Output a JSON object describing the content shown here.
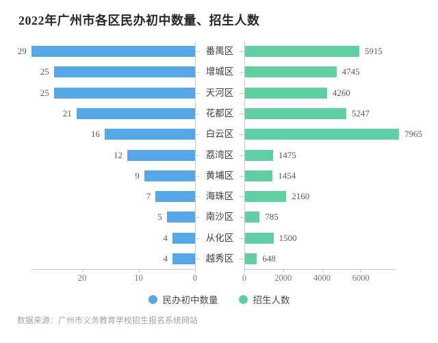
{
  "page": {
    "title": "2022年广州市各区民办初中数量、招生人数",
    "source_note": "数据来源：广州市义务教育学校招生报名系统网站"
  },
  "colors": {
    "schools_blue": "#56a7e8",
    "enrollment_green": "#5fd0a2",
    "axis_line": "#c9c9c9",
    "tick_label": "#737373",
    "value_label": "#595959",
    "category_label": "#3d3d3d",
    "title": "#262626",
    "source": "#a3a3a3",
    "background": "#ffffff"
  },
  "legend": {
    "items": [
      {
        "label": "民办初中数量",
        "color": "#56a7e8"
      },
      {
        "label": "招生人数",
        "color": "#5fd0a2"
      }
    ]
  },
  "chart_data": {
    "type": "bar",
    "variant": "diverging-horizontal-tornado",
    "title": "2022年广州市各区民办初中数量、招生人数",
    "categories": [
      "番禺区",
      "增城区",
      "天河区",
      "花都区",
      "白云区",
      "荔湾区",
      "黄埔区",
      "海珠区",
      "南沙区",
      "从化区",
      "越秀区"
    ],
    "series": [
      {
        "name": "民办初中数量",
        "side": "left",
        "color": "#56a7e8",
        "values": [
          29,
          25,
          25,
          21,
          16,
          12,
          9,
          7,
          5,
          4,
          4
        ],
        "axis_ticks": [
          20,
          10,
          0
        ],
        "axis_reversed": true,
        "axis_max": 29
      },
      {
        "name": "招生人数",
        "side": "right",
        "color": "#5fd0a2",
        "values": [
          5915,
          4745,
          4260,
          5247,
          7965,
          1475,
          1454,
          2160,
          785,
          1500,
          648
        ],
        "axis_ticks": [
          0,
          2000,
          4000,
          6000
        ],
        "axis_max": 8000
      }
    ],
    "value_labels": true,
    "grid": false,
    "legend_position": "bottom",
    "source_note": "数据来源：广州市义务教育学校招生报名系统网站"
  }
}
